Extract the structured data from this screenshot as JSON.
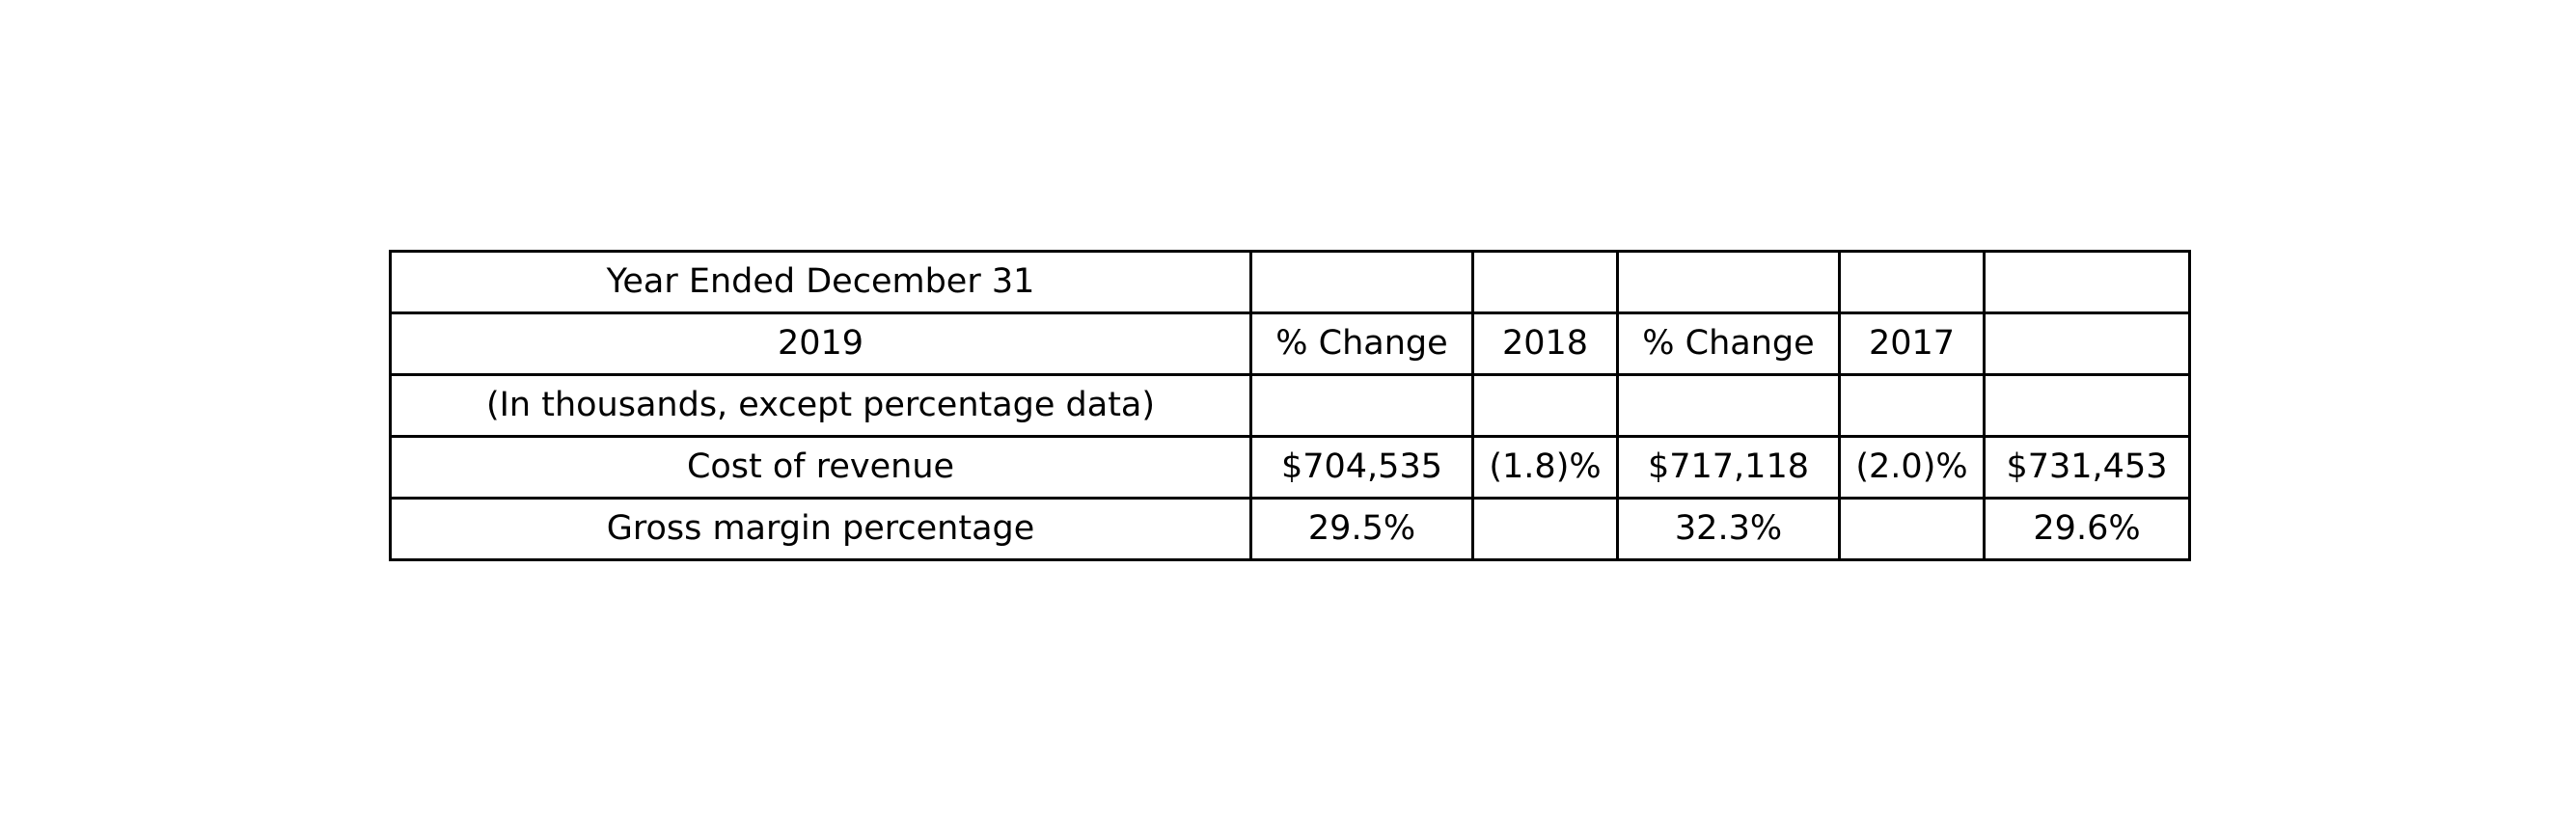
{
  "table": {
    "rows": [
      [
        "Year Ended December 31",
        "",
        "",
        "",
        "",
        ""
      ],
      [
        "2019",
        "% Change",
        "2018",
        "% Change",
        "2017",
        ""
      ],
      [
        "(In thousands, except percentage data)",
        "",
        "",
        "",
        "",
        ""
      ],
      [
        "Cost of revenue",
        "$704,535",
        "(1.8)%",
        "$717,118",
        "(2.0)%",
        "$731,453"
      ],
      [
        "Gross margin percentage",
        "29.5%",
        "",
        "32.3%",
        "",
        "29.6%"
      ]
    ]
  }
}
